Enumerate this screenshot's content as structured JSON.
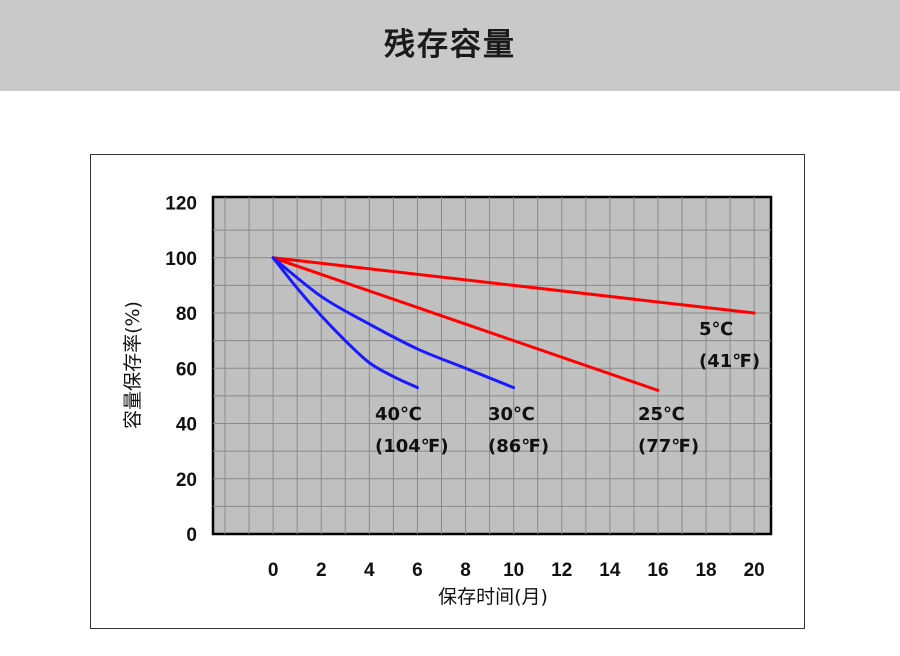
{
  "header": {
    "title": "残存容量"
  },
  "colors": {
    "header_bg": "#c9c9c9",
    "plot_bg": "#c0c0c0",
    "red": "#ff0000",
    "blue": "#1a1aff"
  },
  "chart_data": {
    "type": "line",
    "title": "",
    "xlabel": "保存时间(月)",
    "ylabel": "容量保存率(%)",
    "xlim": [
      -2.5,
      20.7
    ],
    "ylim": [
      0,
      122
    ],
    "xticks": [
      "0",
      "2",
      "4",
      "6",
      "8",
      "10",
      "12",
      "14",
      "16",
      "18",
      "20"
    ],
    "yticks": [
      "0",
      "20",
      "40",
      "60",
      "80",
      "100",
      "120"
    ],
    "grid": true,
    "series": [
      {
        "color": "#ff0000",
        "label_line1": "5℃",
        "label_line2": "(41℉)",
        "x": [
          0,
          20
        ],
        "y": [
          100,
          80
        ]
      },
      {
        "color": "#ff0000",
        "label_line1": "25℃",
        "label_line2": "(77℉)",
        "x": [
          0,
          16
        ],
        "y": [
          100,
          52
        ]
      },
      {
        "color": "#1a1aff",
        "label_line1": "30℃",
        "label_line2": "(86℉)",
        "x": [
          0,
          2,
          4,
          6,
          8,
          10
        ],
        "y": [
          100,
          86,
          76,
          67,
          60,
          53
        ]
      },
      {
        "color": "#1a1aff",
        "label_line1": "40℃",
        "label_line2": "(104℉)",
        "x": [
          0,
          1,
          2,
          3,
          4,
          5,
          6
        ],
        "y": [
          100,
          89,
          79,
          70,
          62,
          57,
          53
        ]
      }
    ]
  }
}
